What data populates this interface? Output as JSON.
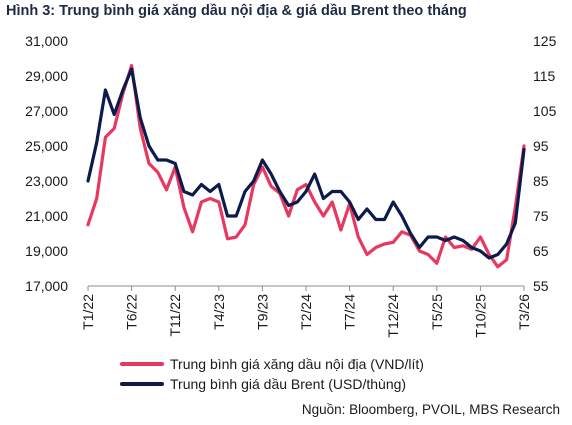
{
  "header": {
    "title": "Hình 3: Trung bình giá xăng dầu nội địa & giá dầu Brent theo tháng"
  },
  "footer": {
    "source": "Nguồn: Bloomberg, PVOIL, MBS Research"
  },
  "chart_data": {
    "type": "line",
    "title": "Hình 3: Trung bình giá xăng dầu nội địa & giá dầu Brent theo tháng",
    "xlabel": "",
    "ylabel": "",
    "x_tick_labels": [
      "T1/22",
      "T6/22",
      "T11/22",
      "T4/23",
      "T9/23",
      "T2/24",
      "T7/24",
      "T12/24",
      "T5/25",
      "T10/25",
      "T3/26"
    ],
    "x_tick_index": [
      0,
      5,
      10,
      15,
      20,
      25,
      30,
      35,
      40,
      45,
      50
    ],
    "y_left": {
      "ticks": [
        "17,000",
        "19,000",
        "21,000",
        "23,000",
        "25,000",
        "27,000",
        "29,000",
        "31,000"
      ],
      "min": 17000,
      "max": 31000
    },
    "y_right": {
      "ticks": [
        "55",
        "65",
        "75",
        "85",
        "95",
        "105",
        "115",
        "125"
      ],
      "min": 55,
      "max": 125
    },
    "grid": false,
    "legend_position": "bottom",
    "series": [
      {
        "name": "Trung bình giá xăng dầu nội địa (VND/lít)",
        "axis": "left",
        "color": "#e8385f",
        "values": [
          20500,
          22000,
          25500,
          26000,
          28000,
          29600,
          26000,
          24000,
          23500,
          22500,
          23800,
          21500,
          20100,
          21800,
          22000,
          21800,
          19700,
          19800,
          20500,
          22800,
          23800,
          22700,
          22300,
          21000,
          22500,
          22800,
          21800,
          21000,
          21800,
          20200,
          21700,
          19800,
          18800,
          19200,
          19400,
          19500,
          20100,
          19900,
          19000,
          18800,
          18300,
          19800,
          19200,
          19300,
          19100,
          19800,
          18800,
          18100,
          18500,
          21500,
          25000
        ]
      },
      {
        "name": "Trung bình giá dầu Brent (USD/thùng)",
        "axis": "right",
        "color": "#0d1b4c",
        "values": [
          85,
          96,
          111,
          104,
          111,
          117,
          103,
          95,
          91,
          91,
          90,
          82,
          81,
          84,
          82,
          84,
          75,
          75,
          82,
          85,
          91,
          87,
          82,
          78,
          79,
          82,
          87,
          80,
          82,
          82,
          79,
          74,
          77,
          74,
          74,
          79,
          75,
          70,
          66,
          69,
          69,
          68,
          69,
          68,
          66,
          65,
          63,
          64,
          67,
          73,
          94
        ]
      }
    ]
  }
}
